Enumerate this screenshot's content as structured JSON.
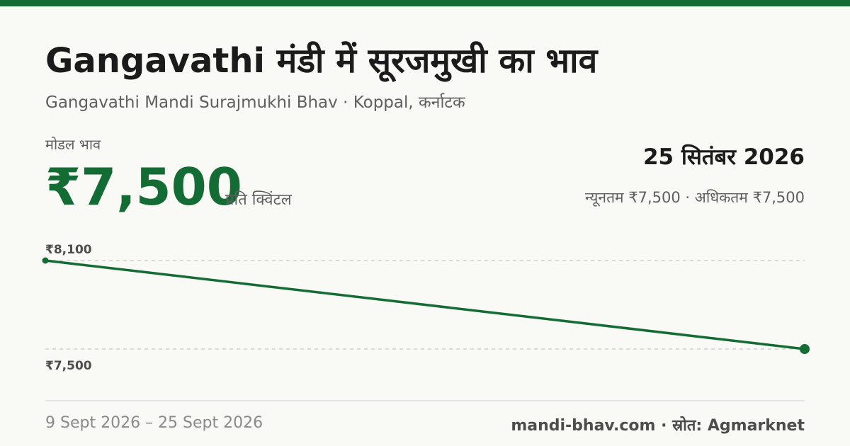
{
  "header": {
    "title": "Gangavathi मंडी में सूरजमुखी का भाव",
    "subtitle": "Gangavathi Mandi Surajmukhi Bhav · Koppal, कर्नाटक"
  },
  "summary": {
    "modal_label": "मोडल भाव",
    "modal_price": "₹7,500",
    "unit": "प्रति क्विंटल",
    "date": "25 सितंबर 2026",
    "min_max": "न्यूनतम ₹7,500 · अधिकतम ₹7,500"
  },
  "footer": {
    "date_range": "9 Sept 2026 – 25 Sept 2026",
    "source": "mandi-bhav.com · स्रोत: Agmarknet"
  },
  "colors": {
    "accent": "#146c35",
    "background": "#f9f9f5",
    "gridline": "#c8c8c8"
  },
  "chart_data": {
    "type": "line",
    "title": "",
    "xlabel": "",
    "ylabel": "",
    "x": [
      "2026-09-09",
      "2026-09-25"
    ],
    "series": [
      {
        "values": [
          8100,
          7500
        ]
      }
    ],
    "y_tick_labels": [
      "₹8,100",
      "₹7,500"
    ],
    "y_tick_values": [
      8100,
      7500
    ],
    "ylim": [
      7500,
      8100
    ],
    "grid": true,
    "legend": "none"
  }
}
